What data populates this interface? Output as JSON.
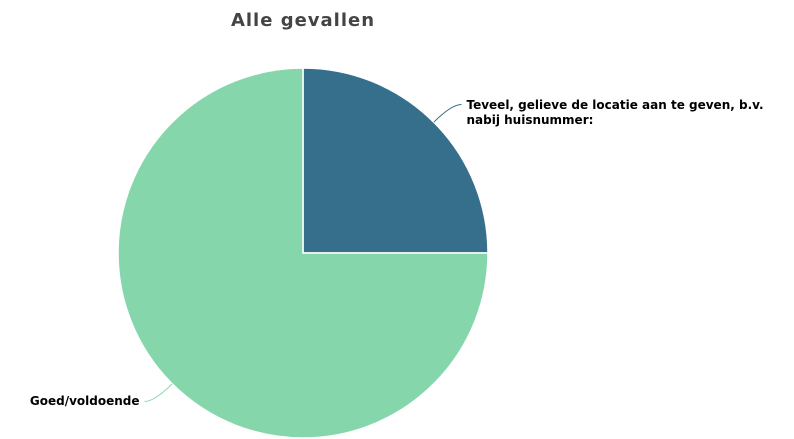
{
  "chart_data": {
    "type": "pie",
    "title": "Alle gevallen",
    "categories": [
      "Teveel, gelieve de locatie aan te geven, b.v. nabij huisnummer:",
      "Goed/voldoende"
    ],
    "values": [
      25,
      75
    ],
    "colors": [
      "#366f8c",
      "#86d6ac"
    ]
  }
}
